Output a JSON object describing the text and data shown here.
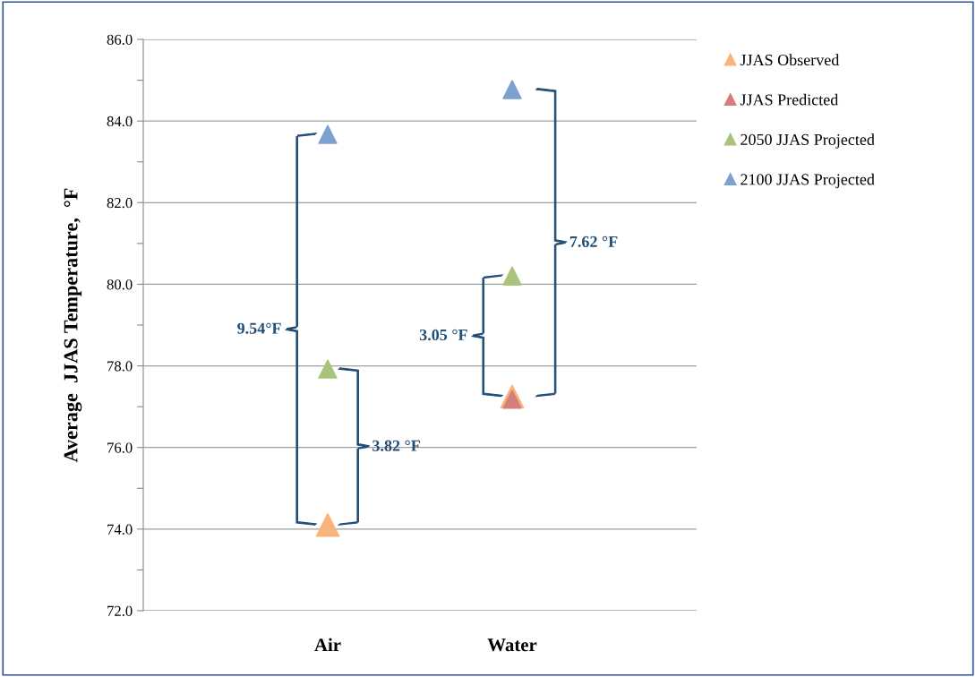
{
  "chart_data": {
    "type": "scatter",
    "ylabel": "Average  JJAS Temperature,  °F",
    "categories": [
      "Air",
      "Water"
    ],
    "series": [
      {
        "name": "JJAS Observed",
        "color": "#f9b47c",
        "values": [
          74.1,
          77.25
        ]
      },
      {
        "name": "JJAS Predicted",
        "color": "#d47f7c",
        "values": [
          null,
          77.18
        ]
      },
      {
        "name": "2050 JJAS Projected",
        "color": "#a9c47a",
        "values": [
          77.92,
          80.2
        ]
      },
      {
        "name": "2100 JJAS Projected",
        "color": "#7ea0d0",
        "values": [
          83.67,
          84.77
        ]
      }
    ],
    "marker": "triangle",
    "ylim": [
      72,
      86
    ],
    "yticks": [
      {
        "value": 72,
        "label": "72.0"
      },
      {
        "value": 73,
        "label": null
      },
      {
        "value": 74,
        "label": "74.0"
      },
      {
        "value": 75,
        "label": null
      },
      {
        "value": 76,
        "label": "76.0"
      },
      {
        "value": 77,
        "label": null
      },
      {
        "value": 78,
        "label": "78.0"
      },
      {
        "value": 79,
        "label": null
      },
      {
        "value": 80,
        "label": "80.0"
      },
      {
        "value": 81,
        "label": null
      },
      {
        "value": 82,
        "label": "82.0"
      },
      {
        "value": 83,
        "label": null
      },
      {
        "value": 84,
        "label": "84.0"
      },
      {
        "value": 85,
        "label": null
      },
      {
        "value": 86,
        "label": "86.0"
      }
    ],
    "grid": "y",
    "legend": "top right",
    "annotations": [
      "9.54°F",
      "3.82 °F",
      "3.05 °F",
      "7.62 °F"
    ]
  }
}
